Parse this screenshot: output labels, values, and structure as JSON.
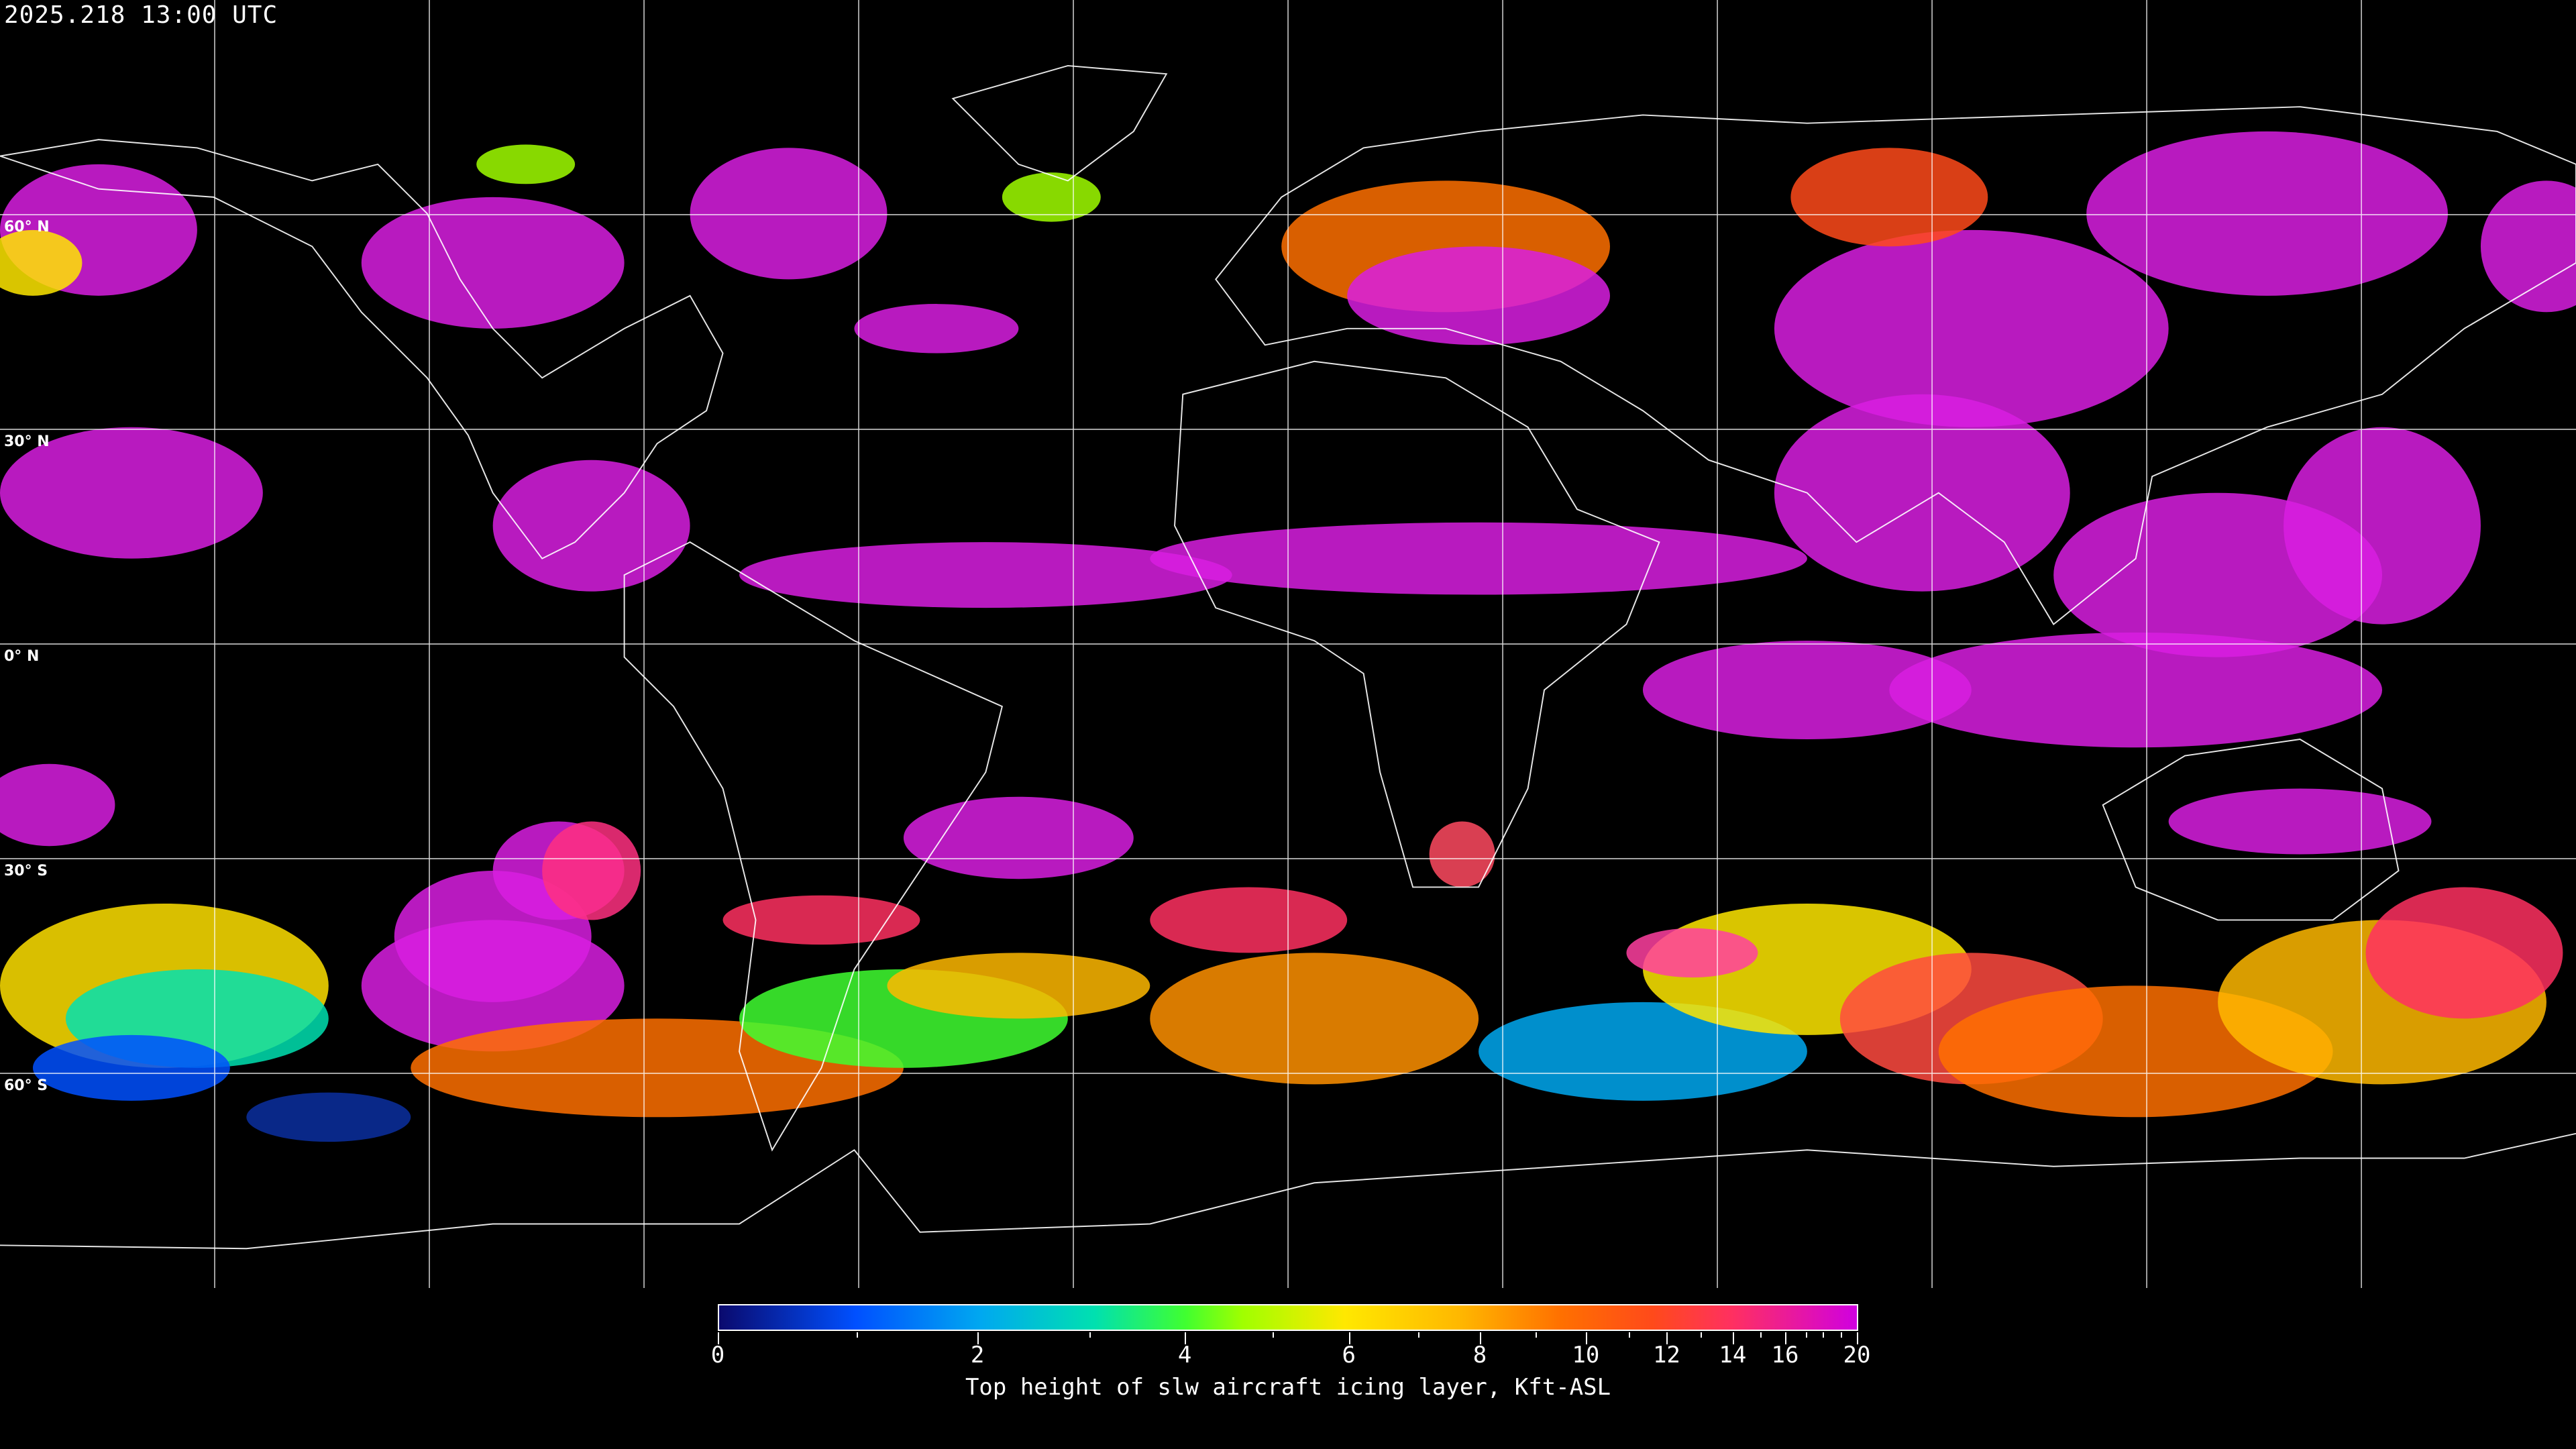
{
  "title": "2025.218 13:00 UTC",
  "map": {
    "projection": "equirectangular",
    "grid_spacing_degrees": 30,
    "lat_labels": [
      "60° N",
      "30° N",
      "0° N",
      "30° S",
      "60° S"
    ],
    "background_color": "#000000",
    "coastline_color": "#ffffff"
  },
  "colorbar": {
    "label": "Top height of slw aircraft icing layer, Kft-ASL",
    "range": [
      0,
      20
    ],
    "scale": "nonlinear",
    "tick_labels": [
      "0",
      "2",
      "4",
      "6",
      "8",
      "10",
      "12",
      "14",
      "16",
      "20"
    ],
    "colors": [
      "#0a0a6e",
      "#0050ff",
      "#00a8f0",
      "#00e0b0",
      "#40ff30",
      "#ffe800",
      "#ffb800",
      "#ff7000",
      "#ff4a1a",
      "#ff3060",
      "#d000e0"
    ]
  }
}
